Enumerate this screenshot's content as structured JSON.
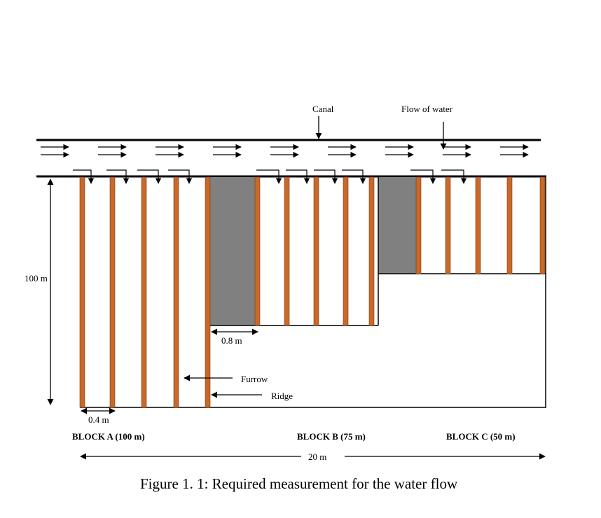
{
  "labels": {
    "canal": "Canal",
    "flow_of_water": "Flow of water",
    "depth": "100 m",
    "ridge_spacing": "0.8 m",
    "furrow_width": "0.4 m",
    "furrow": "Furrow",
    "ridge": "Ridge",
    "total_width": "20 m"
  },
  "blocks": {
    "a": "BLOCK A (100 m)",
    "b": "BLOCK B (75 m)",
    "c": "BLOCK C (50 m)"
  },
  "caption": "Figure 1. 1:  Required measurement for the water flow",
  "colors": {
    "ridge": "#c8692a",
    "ridge_outline": "#7a3a12",
    "gap_fill": "#808080",
    "line": "#000000"
  }
}
